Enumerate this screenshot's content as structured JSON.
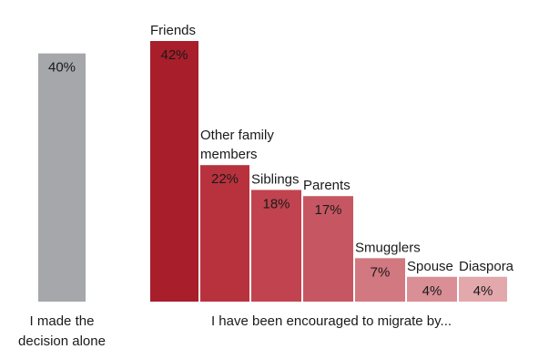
{
  "chart_data": [
    {
      "type": "bar",
      "categories": [
        "I made the decision alone"
      ],
      "category_label_lines": [
        "I made the",
        "decision alone"
      ],
      "values": [
        40
      ],
      "value_labels": [
        "40%"
      ],
      "unit": "%",
      "ylim": [
        0,
        42
      ],
      "colors": [
        "#a6a7ab"
      ],
      "grid": false
    },
    {
      "type": "bar",
      "xlabel": "I have been encouraged to migrate by...",
      "categories": [
        "Friends",
        "Other family members",
        "Siblings",
        "Parents",
        "Smugglers",
        "Spouse",
        "Diaspora"
      ],
      "category_label_lines": [
        [
          "Friends"
        ],
        [
          "Other family",
          "members"
        ],
        [
          "Siblings"
        ],
        [
          "Parents"
        ],
        [
          "Smugglers"
        ],
        [
          "Spouse"
        ],
        [
          "Diaspora"
        ]
      ],
      "values": [
        42,
        22,
        18,
        17,
        7,
        4,
        4
      ],
      "value_labels": [
        "42%",
        "22%",
        "18%",
        "17%",
        "7%",
        "4%",
        "4%"
      ],
      "unit": "%",
      "ylim": [
        0,
        42
      ],
      "colors": [
        "#a81e2b",
        "#b8323e",
        "#c0434f",
        "#c65762",
        "#d17880",
        "#d98f95",
        "#e2a8ac"
      ],
      "grid": false
    }
  ]
}
